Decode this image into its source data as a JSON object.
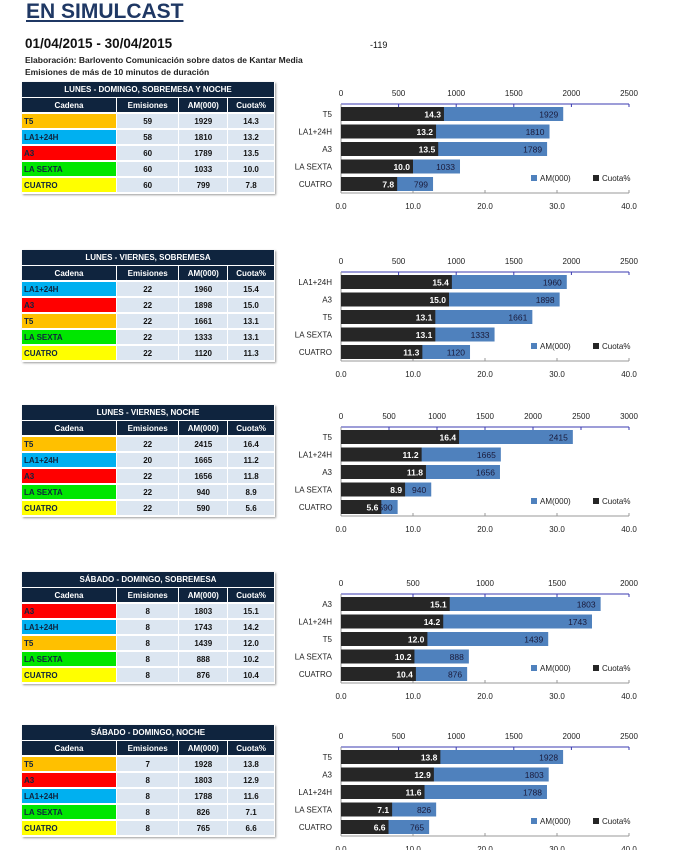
{
  "header": {
    "title": "EN SIMULCAST",
    "date_range": "01/04/2015 - 30/04/2015",
    "code": "-119",
    "note1": "Elaboración:  Barlovento Comunicación  sobre datos de Kantar Media",
    "note2": "Emisiones de más de 10 minutos de duración"
  },
  "columns": [
    "Cadena",
    "Emisiones",
    "AM(000)",
    "Cuota%"
  ],
  "channel_colors": {
    "T5": "#ffc000",
    "LA1+24H": "#00b0f0",
    "A3": "#ff0000",
    "LA SEXTA": "#00e600",
    "CUATRO": "#ffff00"
  },
  "series_colors": {
    "AM(000)": "#4f81bd",
    "Cuota%": "#262626"
  },
  "legend": [
    "AM(000)",
    "Cuota%"
  ],
  "sections": [
    {
      "caption": "LUNES - DOMINGO, SOBREMESA Y NOCHE",
      "rows": [
        [
          "T5",
          59,
          1929,
          "14.3"
        ],
        [
          "LA1+24H",
          58,
          1810,
          "13.2"
        ],
        [
          "A3",
          60,
          1789,
          "13.5"
        ],
        [
          "LA SEXTA",
          60,
          1033,
          "10.0"
        ],
        [
          "CUATRO",
          60,
          799,
          "7.8"
        ]
      ],
      "chart_data": {
        "type": "bar",
        "orientation": "horizontal",
        "categories": [
          "T5",
          "LA1+24H",
          "A3",
          "LA SEXTA",
          "CUATRO"
        ],
        "series": [
          {
            "name": "AM(000)",
            "values": [
              1929,
              1810,
              1789,
              1033,
              799
            ],
            "axis": "top",
            "xlim": [
              0,
              2500
            ],
            "ticks": [
              0,
              500,
              1000,
              1500,
              2000,
              2500
            ]
          },
          {
            "name": "Cuota%",
            "values": [
              14.3,
              13.2,
              13.5,
              10.0,
              7.8
            ],
            "axis": "bottom",
            "xlim": [
              0,
              40
            ],
            "ticks": [
              "0.0",
              "10.0",
              "20.0",
              "30.0",
              "40.0"
            ]
          }
        ],
        "legend": "bottom-right"
      }
    },
    {
      "caption": "LUNES - VIERNES, SOBREMESA",
      "rows": [
        [
          "LA1+24H",
          22,
          1960,
          "15.4"
        ],
        [
          "A3",
          22,
          1898,
          "15.0"
        ],
        [
          "T5",
          22,
          1661,
          "13.1"
        ],
        [
          "LA SEXTA",
          22,
          1333,
          "13.1"
        ],
        [
          "CUATRO",
          22,
          1120,
          "11.3"
        ]
      ],
      "chart_data": {
        "type": "bar",
        "orientation": "horizontal",
        "categories": [
          "LA1+24H",
          "A3",
          "T5",
          "LA SEXTA",
          "CUATRO"
        ],
        "series": [
          {
            "name": "AM(000)",
            "values": [
              1960,
              1898,
              1661,
              1333,
              1120
            ],
            "axis": "top",
            "xlim": [
              0,
              2500
            ],
            "ticks": [
              0,
              500,
              1000,
              1500,
              2000,
              2500
            ]
          },
          {
            "name": "Cuota%",
            "values": [
              15.4,
              15.0,
              13.1,
              13.1,
              11.3
            ],
            "axis": "bottom",
            "xlim": [
              0,
              40
            ],
            "ticks": [
              "0.0",
              "10.0",
              "20.0",
              "30.0",
              "40.0"
            ]
          }
        ],
        "legend": "bottom-right"
      }
    },
    {
      "caption": "LUNES - VIERNES, NOCHE",
      "rows": [
        [
          "T5",
          22,
          2415,
          "16.4"
        ],
        [
          "LA1+24H",
          20,
          1665,
          "11.2"
        ],
        [
          "A3",
          22,
          1656,
          "11.8"
        ],
        [
          "LA SEXTA",
          22,
          940,
          "8.9"
        ],
        [
          "CUATRO",
          22,
          590,
          "5.6"
        ]
      ],
      "chart_data": {
        "type": "bar",
        "orientation": "horizontal",
        "categories": [
          "T5",
          "LA1+24H",
          "A3",
          "LA SEXTA",
          "CUATRO"
        ],
        "series": [
          {
            "name": "AM(000)",
            "values": [
              2415,
              1665,
              1656,
              940,
              590
            ],
            "axis": "top",
            "xlim": [
              0,
              3000
            ],
            "ticks": [
              0,
              500,
              1000,
              1500,
              2000,
              2500,
              3000
            ]
          },
          {
            "name": "Cuota%",
            "values": [
              16.4,
              11.2,
              11.8,
              8.9,
              5.6
            ],
            "axis": "bottom",
            "xlim": [
              0,
              40
            ],
            "ticks": [
              "0.0",
              "10.0",
              "20.0",
              "30.0",
              "40.0"
            ]
          }
        ],
        "legend": "bottom-right"
      }
    },
    {
      "caption": "SÁBADO - DOMINGO, SOBREMESA",
      "rows": [
        [
          "A3",
          8,
          1803,
          "15.1"
        ],
        [
          "LA1+24H",
          8,
          1743,
          "14.2"
        ],
        [
          "T5",
          8,
          1439,
          "12.0"
        ],
        [
          "LA SEXTA",
          8,
          888,
          "10.2"
        ],
        [
          "CUATRO",
          8,
          876,
          "10.4"
        ]
      ],
      "chart_data": {
        "type": "bar",
        "orientation": "horizontal",
        "categories": [
          "A3",
          "LA1+24H",
          "T5",
          "LA SEXTA",
          "CUATRO"
        ],
        "series": [
          {
            "name": "AM(000)",
            "values": [
              1803,
              1743,
              1439,
              888,
              876
            ],
            "axis": "top",
            "xlim": [
              0,
              2000
            ],
            "ticks": [
              0,
              500,
              1000,
              1500,
              2000
            ]
          },
          {
            "name": "Cuota%",
            "values": [
              15.1,
              14.2,
              12.0,
              10.2,
              10.4
            ],
            "axis": "bottom",
            "xlim": [
              0,
              40
            ],
            "ticks": [
              "0.0",
              "10.0",
              "20.0",
              "30.0",
              "40.0"
            ]
          }
        ],
        "legend": "bottom-right"
      }
    },
    {
      "caption": "SÁBADO - DOMINGO, NOCHE",
      "rows": [
        [
          "T5",
          7,
          1928,
          "13.8"
        ],
        [
          "A3",
          8,
          1803,
          "12.9"
        ],
        [
          "LA1+24H",
          8,
          1788,
          "11.6"
        ],
        [
          "LA SEXTA",
          8,
          826,
          "7.1"
        ],
        [
          "CUATRO",
          8,
          765,
          "6.6"
        ]
      ],
      "chart_data": {
        "type": "bar",
        "orientation": "horizontal",
        "categories": [
          "T5",
          "A3",
          "LA1+24H",
          "LA SEXTA",
          "CUATRO"
        ],
        "series": [
          {
            "name": "AM(000)",
            "values": [
              1928,
              1803,
              1788,
              826,
              765
            ],
            "axis": "top",
            "xlim": [
              0,
              2500
            ],
            "ticks": [
              0,
              500,
              1000,
              1500,
              2000,
              2500
            ]
          },
          {
            "name": "Cuota%",
            "values": [
              13.8,
              12.9,
              11.6,
              7.1,
              6.6
            ],
            "axis": "bottom",
            "xlim": [
              0,
              40
            ],
            "ticks": [
              "0.0",
              "10.0",
              "20.0",
              "30.0",
              "40.0"
            ]
          }
        ],
        "legend": "bottom-right"
      }
    }
  ]
}
